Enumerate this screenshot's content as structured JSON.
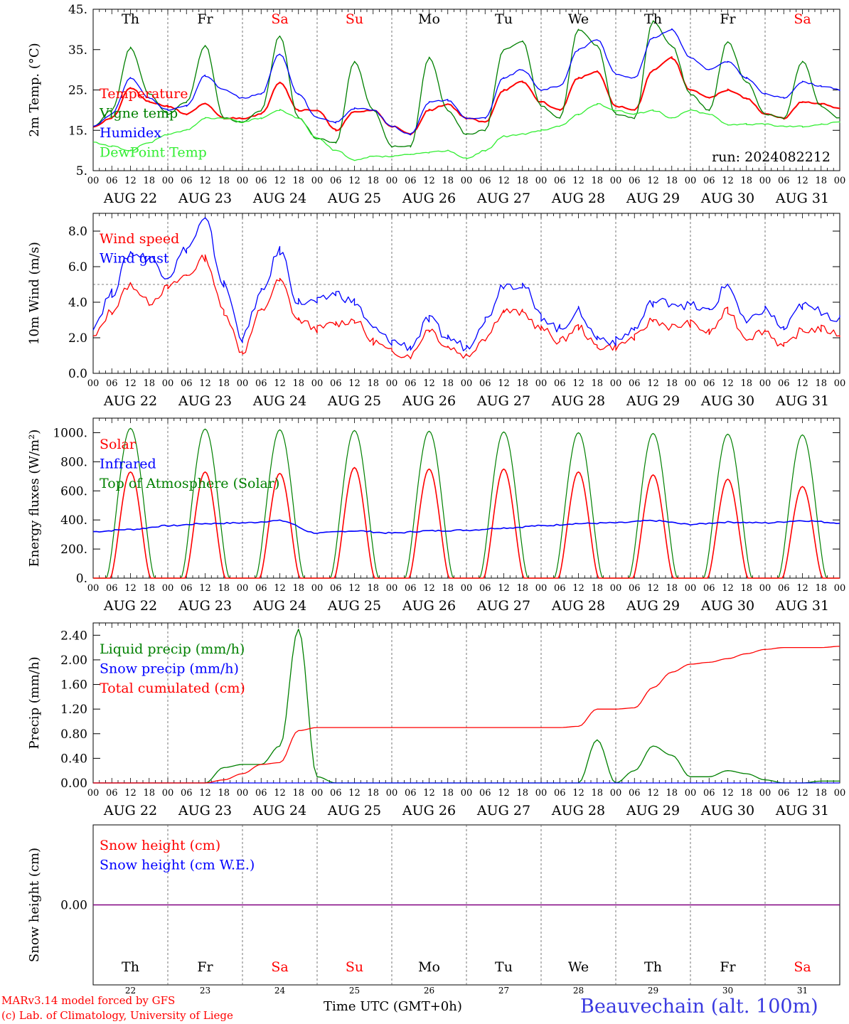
{
  "footer": {
    "line1": "MARv3.14 model forced by GFS",
    "line2": "(c) Lab. of Climatology, University of Liege",
    "xlabel": "Time UTC (GMT+0h)",
    "station": "Beauvechain (alt. 100m)"
  },
  "days": {
    "names": [
      "Th",
      "Fr",
      "Sa",
      "Su",
      "Mo",
      "Tu",
      "We",
      "Th",
      "Fr",
      "Sa"
    ],
    "weekend": [
      false,
      false,
      true,
      true,
      false,
      false,
      false,
      false,
      false,
      true
    ],
    "dates": [
      "AUG 22",
      "AUG 23",
      "AUG 24",
      "AUG 25",
      "AUG 26",
      "AUG 27",
      "AUG 28",
      "AUG 29",
      "AUG 30",
      "AUG 31"
    ],
    "numbers": [
      "22",
      "23",
      "24",
      "25",
      "26",
      "27",
      "28",
      "29",
      "30",
      "31"
    ],
    "hour_ticks": [
      "00",
      "06",
      "12",
      "18"
    ]
  },
  "colors": {
    "red": "#ff0000",
    "green": "#008000",
    "blue": "#0000ff",
    "lightgreen": "#33ee33",
    "purple": "#800080"
  },
  "chart_data": [
    {
      "type": "line",
      "ylabel": "2m Temp. (°C)",
      "ylim": [
        5,
        45
      ],
      "yticks": [
        "5.",
        "15.",
        "25.",
        "35.",
        "45."
      ],
      "annotation": "run: 2024082212",
      "x_hours": [
        0,
        6,
        12,
        18,
        24,
        30,
        36,
        42,
        48,
        54,
        60,
        66,
        72,
        78,
        84,
        90,
        96,
        102,
        108,
        114,
        120,
        126,
        132,
        138,
        144,
        150,
        156,
        162,
        168,
        174,
        180,
        186,
        192,
        198,
        204,
        210,
        216,
        222,
        228,
        234,
        240
      ],
      "series": [
        {
          "name": "Temperature",
          "color": "red",
          "values": [
            16,
            18,
            25.5,
            22,
            21,
            19,
            21.5,
            18,
            18,
            19,
            27,
            20,
            20,
            15,
            19.5,
            20,
            16,
            14,
            20,
            21.5,
            18,
            17,
            25,
            27,
            22,
            20,
            28,
            29.5,
            21,
            20,
            30,
            33,
            25,
            23,
            25,
            23,
            19,
            18,
            22,
            21.5,
            20.5
          ]
        },
        {
          "name": "Vigne temp",
          "color": "green",
          "values": [
            16,
            20,
            35.5,
            24,
            19,
            22,
            36,
            18,
            17,
            20,
            38.5,
            18,
            13,
            12,
            32,
            20,
            11,
            11,
            33,
            20,
            14,
            15,
            35,
            37,
            21,
            18,
            40,
            36,
            19,
            18,
            42,
            36,
            24,
            20,
            37,
            27,
            19,
            18,
            32,
            21,
            18
          ]
        },
        {
          "name": "Humidex",
          "color": "blue",
          "values": [
            16,
            19,
            28,
            23,
            20,
            21,
            28.5,
            25,
            23,
            24,
            34,
            24,
            18,
            17,
            20.5,
            20,
            16,
            14,
            22,
            22.5,
            18,
            18,
            28,
            30,
            25,
            26,
            35,
            37.5,
            29,
            28,
            38,
            40,
            33,
            30,
            32,
            28,
            24,
            23,
            27,
            26,
            25
          ]
        },
        {
          "name": "DewPoint Temp",
          "color": "lightgreen",
          "values": [
            12,
            11,
            10,
            12,
            14,
            15,
            18,
            18,
            17,
            18,
            20,
            18,
            13,
            10,
            7.5,
            8.5,
            8.5,
            9,
            9.5,
            10,
            8,
            10,
            13.5,
            14,
            15,
            16,
            19,
            21.5,
            20,
            19,
            20,
            18,
            20,
            19,
            16.5,
            16.5,
            16.5,
            16,
            16,
            16.5,
            17
          ]
        }
      ]
    },
    {
      "type": "line",
      "ylabel": "10m Wind (m/s)",
      "ylim": [
        0,
        9
      ],
      "yticks": [
        "0.0",
        "2.0",
        "4.0",
        "6.0",
        "8.0"
      ],
      "ref_line": 5,
      "x_hours": [
        0,
        6,
        12,
        18,
        24,
        30,
        36,
        42,
        48,
        54,
        60,
        66,
        72,
        78,
        84,
        90,
        96,
        102,
        108,
        114,
        120,
        126,
        132,
        138,
        144,
        150,
        156,
        162,
        168,
        174,
        180,
        186,
        192,
        198,
        204,
        210,
        216,
        222,
        228,
        234,
        240
      ],
      "series": [
        {
          "name": "Wind speed",
          "color": "red",
          "values": [
            2.0,
            3.5,
            5.0,
            4.0,
            4.8,
            5.5,
            6.5,
            3.5,
            1.2,
            3.5,
            5.2,
            3.0,
            2.5,
            2.8,
            3.0,
            1.8,
            1.2,
            1.0,
            2.5,
            1.5,
            1.0,
            2.0,
            3.5,
            3.4,
            2.5,
            1.8,
            2.6,
            1.5,
            1.5,
            2.0,
            3.0,
            2.6,
            2.8,
            2.3,
            3.5,
            2.0,
            2.4,
            1.5,
            2.4,
            2.5,
            2.2
          ]
        },
        {
          "name": "Wind gust",
          "color": "blue",
          "values": [
            2.7,
            4.5,
            6.8,
            6.5,
            5.5,
            7.0,
            8.6,
            5.0,
            2.0,
            4.5,
            6.9,
            4.0,
            4.0,
            4.5,
            4.0,
            2.5,
            1.8,
            1.5,
            3.0,
            2.0,
            1.5,
            3.0,
            5.0,
            5.0,
            3.2,
            2.5,
            3.5,
            2.0,
            1.8,
            2.5,
            4.0,
            4.0,
            3.8,
            3.5,
            5.0,
            2.8,
            3.6,
            2.5,
            3.8,
            3.5,
            3.0
          ]
        }
      ]
    },
    {
      "type": "line",
      "ylabel": "Energy fluxes (W/m²)",
      "ylim": [
        0,
        1100
      ],
      "yticks": [
        "0.",
        "200.",
        "400.",
        "600.",
        "800.",
        "1000."
      ],
      "series": [
        {
          "name": "Solar",
          "color": "red",
          "daily_peak": [
            730,
            730,
            720,
            760,
            750,
            750,
            730,
            710,
            680,
            630
          ]
        },
        {
          "name": "Infrared",
          "color": "blue",
          "daily_mean": [
            320,
            360,
            380,
            310,
            310,
            330,
            360,
            380,
            370,
            380
          ]
        },
        {
          "name": "Top of Atmosphere (Solar)",
          "color": "green",
          "daily_peak": [
            1030,
            1025,
            1020,
            1015,
            1010,
            1005,
            1000,
            995,
            990,
            985
          ]
        }
      ]
    },
    {
      "type": "line",
      "ylabel": "Precip (mm/h)",
      "ylim": [
        0,
        2.6
      ],
      "yticks": [
        "0.00",
        "0.40",
        "0.80",
        "1.20",
        "1.60",
        "2.00",
        "2.40"
      ],
      "x_hours": [
        0,
        6,
        12,
        18,
        24,
        30,
        36,
        42,
        48,
        54,
        60,
        66,
        72,
        78,
        84,
        90,
        96,
        102,
        108,
        114,
        120,
        126,
        132,
        138,
        144,
        150,
        156,
        162,
        168,
        174,
        180,
        186,
        192,
        198,
        204,
        210,
        216,
        222,
        228,
        234,
        240
      ],
      "series": [
        {
          "name": "Liquid precip (mm/h)",
          "color": "green",
          "values": [
            0,
            0,
            0,
            0,
            0,
            0,
            0,
            0.25,
            0.3,
            0.3,
            0.6,
            2.5,
            0.1,
            0,
            0,
            0,
            0,
            0,
            0,
            0,
            0,
            0,
            0,
            0,
            0,
            0,
            0,
            0.7,
            0,
            0.2,
            0.6,
            0.45,
            0.1,
            0.1,
            0.2,
            0.15,
            0.05,
            0,
            0,
            0.03,
            0.03
          ]
        },
        {
          "name": "Snow precip (mm/h)",
          "color": "blue",
          "values": [
            0,
            0,
            0,
            0,
            0,
            0,
            0,
            0,
            0,
            0,
            0,
            0,
            0,
            0,
            0,
            0,
            0,
            0,
            0,
            0,
            0,
            0,
            0,
            0,
            0,
            0,
            0,
            0,
            0,
            0,
            0,
            0,
            0,
            0,
            0,
            0,
            0,
            0,
            0,
            0,
            0
          ]
        },
        {
          "name": "Total cumulated (cm)",
          "color": "red",
          "values": [
            0,
            0,
            0,
            0,
            0,
            0,
            0,
            0.05,
            0.15,
            0.3,
            0.33,
            0.85,
            0.9,
            0.9,
            0.9,
            0.9,
            0.9,
            0.9,
            0.9,
            0.9,
            0.9,
            0.9,
            0.9,
            0.9,
            0.9,
            0.9,
            0.92,
            1.2,
            1.2,
            1.22,
            1.55,
            1.8,
            1.93,
            1.96,
            2.02,
            2.1,
            2.17,
            2.2,
            2.2,
            2.2,
            2.22
          ]
        }
      ]
    },
    {
      "type": "line",
      "ylabel": "Snow height (cm)",
      "yticks": [
        "0.00"
      ],
      "series": [
        {
          "name": "Snow height (cm)",
          "color": "red",
          "values": [
            0,
            0
          ]
        },
        {
          "name": "Snow height (cm W.E.)",
          "color": "blue",
          "values": [
            0,
            0
          ]
        }
      ]
    }
  ]
}
